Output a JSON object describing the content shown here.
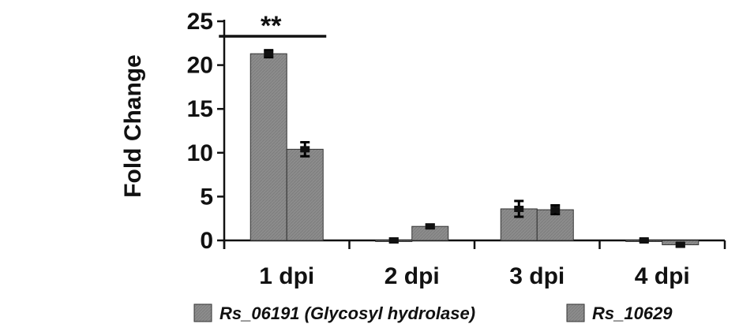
{
  "chart_data": {
    "type": "bar",
    "title": "",
    "xlabel": "",
    "ylabel": "Fold Change",
    "ylim": [
      0,
      25
    ],
    "yticks": [
      0,
      5,
      10,
      15,
      20,
      25
    ],
    "categories": [
      "1 dpi",
      "2 dpi",
      "3 dpi",
      "4 dpi"
    ],
    "series": [
      {
        "name": "Rs_06191 (Glycosyl hydrolase)",
        "values": [
          21.3,
          0.0,
          3.6,
          0.0
        ],
        "errors": [
          0.4,
          0.2,
          0.9,
          0.1
        ],
        "color": "#8a8a8a"
      },
      {
        "name": "Rs_10629",
        "values": [
          10.4,
          1.6,
          3.5,
          -0.5
        ],
        "errors": [
          0.8,
          0.2,
          0.5,
          0.2
        ],
        "color": "#959595"
      }
    ],
    "significance": [
      {
        "category": "1 dpi",
        "label": "**"
      }
    ],
    "legend_position": "bottom",
    "grid": false
  },
  "colors": {
    "bar_fill": "#8a8a8a",
    "bar_stroke": "#333333",
    "axis": "#111111"
  }
}
